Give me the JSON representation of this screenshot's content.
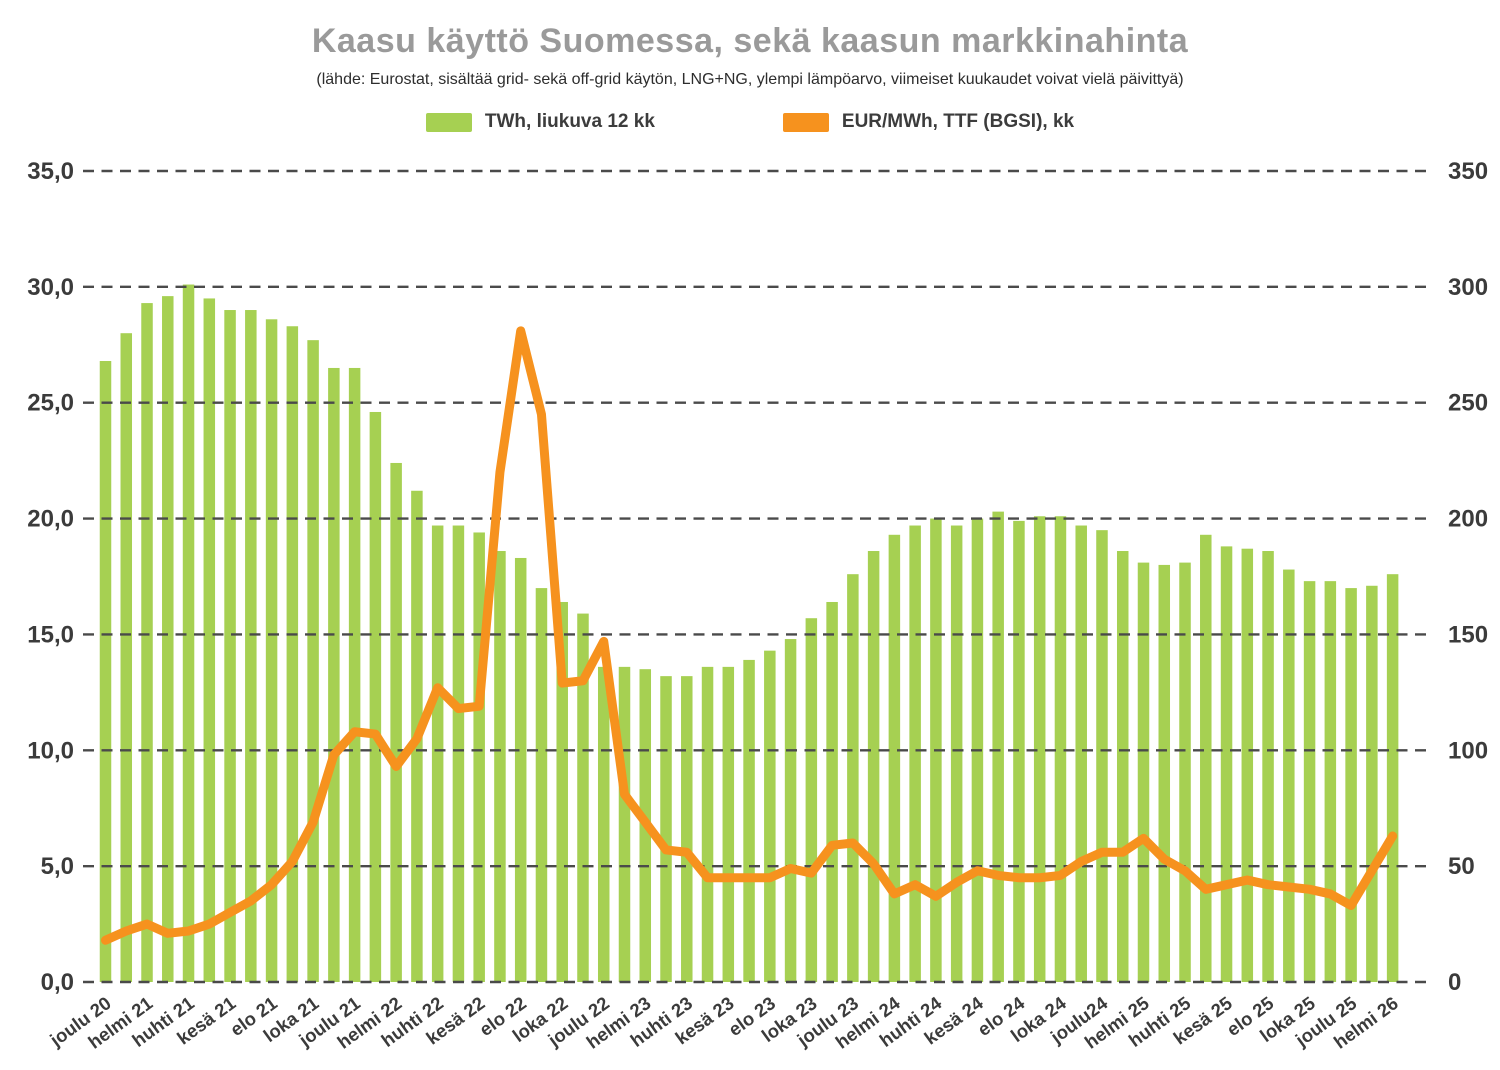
{
  "header": {
    "title": "Kaasu käyttö Suomessa, sekä kaasun markkinahinta",
    "subtitle": "(lähde: Eurostat, sisältää grid- sekä off-grid käytön, LNG+NG, ylempi lämpöarvo, viimeiset kuukaudet voivat vielä päivittyä)"
  },
  "legend": [
    {
      "label": "TWh, liukuva 12 kk",
      "color": "#a6d052"
    },
    {
      "label": "EUR/MWh, TTF (BGSI), kk",
      "color": "#f6921e"
    }
  ],
  "chart_data": {
    "type": "bar+line",
    "title": "Kaasu käyttö Suomessa, sekä kaasun markkinahinta",
    "x_tick_labels": [
      "joulu 20",
      "helmi 21",
      "huhti 21",
      "kesä 21",
      "elo 21",
      "loka 21",
      "joulu 21",
      "helmi 22",
      "huhti 22",
      "kesä 22",
      "elo 22",
      "loka 22",
      "joulu 22",
      "helmi 23",
      "huhti 23",
      "kesä 23",
      "elo 23",
      "loka 23",
      "joulu 23",
      "helmi 24",
      "huhti 24",
      "kesä 24",
      "elo 24",
      "loka 24",
      "joulu24",
      "helmi 25",
      "huhti 25",
      "kesä 25",
      "elo 25",
      "loka 25",
      "joulu 25",
      "helmi 26"
    ],
    "label_every_n_bars": 2,
    "bars": {
      "name": "TWh, liukuva 12 kk",
      "color": "#a6d052",
      "values": [
        26.8,
        28.0,
        29.3,
        29.6,
        30.1,
        29.5,
        29.0,
        29.0,
        28.6,
        28.3,
        27.7,
        26.5,
        26.5,
        24.6,
        22.4,
        21.2,
        19.7,
        19.7,
        19.4,
        18.6,
        18.3,
        17.0,
        16.4,
        15.9,
        13.6,
        13.6,
        13.5,
        13.2,
        13.2,
        13.6,
        13.6,
        13.9,
        14.3,
        14.8,
        15.7,
        16.4,
        17.6,
        18.6,
        19.3,
        19.7,
        20.0,
        19.7,
        20.0,
        20.3,
        19.9,
        20.1,
        20.1,
        19.7,
        19.5,
        18.6,
        18.1,
        18.0,
        18.1,
        19.3,
        18.8,
        18.7,
        18.6,
        17.8,
        17.3,
        17.3,
        17.0,
        17.1,
        17.6
      ]
    },
    "line": {
      "name": "EUR/MWh, TTF (BGSI), kk",
      "color": "#f6921e",
      "values": [
        18,
        22,
        25,
        21,
        22,
        25,
        30,
        35,
        42,
        52,
        69,
        98,
        108,
        107,
        93,
        105,
        127,
        118,
        119,
        220,
        281,
        245,
        129,
        130,
        147,
        81,
        69,
        57,
        56,
        45,
        45,
        45,
        45,
        49,
        47,
        59,
        60,
        51,
        38,
        42,
        37,
        43,
        48,
        46,
        45,
        45,
        46,
        52,
        56,
        56,
        62,
        53,
        48,
        40,
        42,
        44,
        42,
        41,
        40,
        38,
        33,
        48,
        63
      ]
    },
    "y_left": {
      "min": 0,
      "max": 35,
      "tick_labels": [
        "0,0",
        "5,0",
        "10,0",
        "15,0",
        "20,0",
        "25,0",
        "30,0",
        "35,0"
      ]
    },
    "y_right": {
      "min": 0,
      "max": 350,
      "tick_labels": [
        "0",
        "50",
        "100",
        "150",
        "200",
        "250",
        "300",
        "350"
      ]
    },
    "grid": {
      "color": "#4a4a4a",
      "dashed": true
    },
    "text_color": "#3b3b3b"
  }
}
